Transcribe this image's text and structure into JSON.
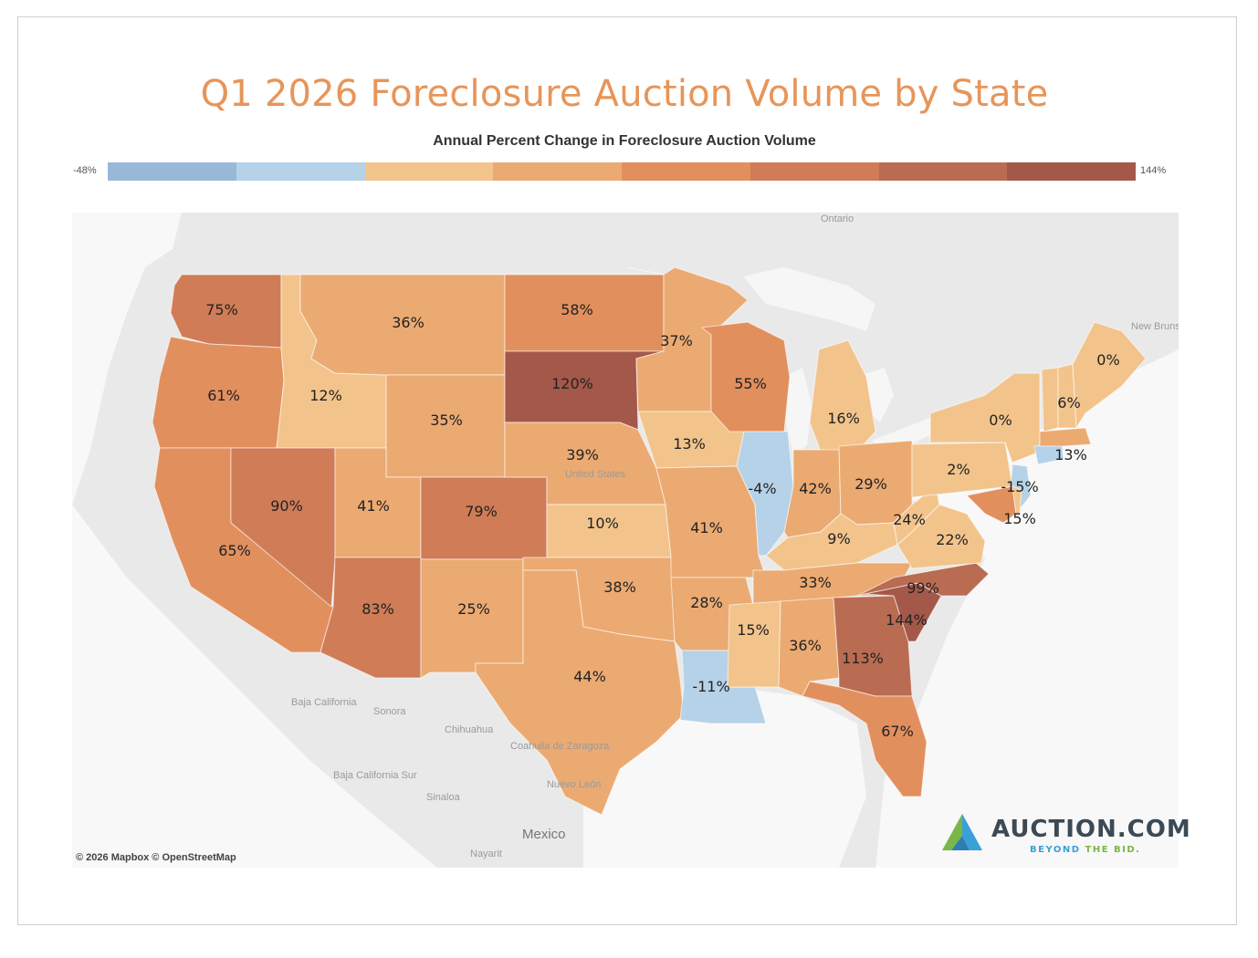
{
  "title": "Q1 2026 Foreclosure Auction Volume by State",
  "legend": {
    "title": "Annual Percent Change in Foreclosure Auction Volume",
    "min_label": "-48%",
    "max_label": "144%",
    "colors": [
      "#98b8d8",
      "#b6d2e8",
      "#f2c48c",
      "#ebaa72",
      "#e28f5e",
      "#cf7c57",
      "#b96c52",
      "#a3584a"
    ]
  },
  "geo_labels": {
    "ontario": "Ontario",
    "new_brunswick": "New Brunswick",
    "united_states": "United States",
    "baja_california": "Baja California",
    "sonora": "Sonora",
    "chihuahua": "Chihuahua",
    "coahuila": "Coahuila de Zaragoza",
    "baja_california_sur": "Baja California Sur",
    "nuevo_leon": "Nuevo León",
    "sinaloa": "Sinaloa",
    "mexico": "Mexico",
    "nayarit": "Nayarit"
  },
  "states": [
    {
      "id": "WA",
      "label": "75%",
      "value": 75,
      "color": "#cf7c57"
    },
    {
      "id": "OR",
      "label": "61%",
      "value": 61,
      "color": "#e28f5e"
    },
    {
      "id": "CA",
      "label": "65%",
      "value": 65,
      "color": "#e28f5e"
    },
    {
      "id": "ID",
      "label": "12%",
      "value": 12,
      "color": "#f2c48c"
    },
    {
      "id": "NV",
      "label": "90%",
      "value": 90,
      "color": "#cf7c57"
    },
    {
      "id": "MT",
      "label": "36%",
      "value": 36,
      "color": "#ebaa72"
    },
    {
      "id": "WY",
      "label": "35%",
      "value": 35,
      "color": "#ebaa72"
    },
    {
      "id": "UT",
      "label": "41%",
      "value": 41,
      "color": "#ebaa72"
    },
    {
      "id": "AZ",
      "label": "83%",
      "value": 83,
      "color": "#cf7c57"
    },
    {
      "id": "CO",
      "label": "79%",
      "value": 79,
      "color": "#cf7c57"
    },
    {
      "id": "NM",
      "label": "25%",
      "value": 25,
      "color": "#ebaa72"
    },
    {
      "id": "ND",
      "label": "58%",
      "value": 58,
      "color": "#e28f5e"
    },
    {
      "id": "SD",
      "label": "120%",
      "value": 120,
      "color": "#a3584a"
    },
    {
      "id": "NE",
      "label": "39%",
      "value": 39,
      "color": "#ebaa72"
    },
    {
      "id": "KS",
      "label": "10%",
      "value": 10,
      "color": "#f2c48c"
    },
    {
      "id": "OK",
      "label": "38%",
      "value": 38,
      "color": "#ebaa72"
    },
    {
      "id": "TX",
      "label": "44%",
      "value": 44,
      "color": "#ebaa72"
    },
    {
      "id": "MN",
      "label": "37%",
      "value": 37,
      "color": "#ebaa72"
    },
    {
      "id": "IA",
      "label": "13%",
      "value": 13,
      "color": "#f2c48c"
    },
    {
      "id": "MO",
      "label": "41%",
      "value": 41,
      "color": "#ebaa72"
    },
    {
      "id": "AR",
      "label": "28%",
      "value": 28,
      "color": "#ebaa72"
    },
    {
      "id": "LA",
      "label": "-11%",
      "value": -11,
      "color": "#b6d2e8"
    },
    {
      "id": "WI",
      "label": "55%",
      "value": 55,
      "color": "#e28f5e"
    },
    {
      "id": "IL",
      "label": "-4%",
      "value": -4,
      "color": "#b6d2e8"
    },
    {
      "id": "MI",
      "label": "16%",
      "value": 16,
      "color": "#f2c48c"
    },
    {
      "id": "IN",
      "label": "42%",
      "value": 42,
      "color": "#ebaa72"
    },
    {
      "id": "OH",
      "label": "29%",
      "value": 29,
      "color": "#ebaa72"
    },
    {
      "id": "KY",
      "label": "9%",
      "value": 9,
      "color": "#f2c48c"
    },
    {
      "id": "TN",
      "label": "33%",
      "value": 33,
      "color": "#ebaa72"
    },
    {
      "id": "MS",
      "label": "15%",
      "value": 15,
      "color": "#f2c48c"
    },
    {
      "id": "AL",
      "label": "36%",
      "value": 36,
      "color": "#ebaa72"
    },
    {
      "id": "GA",
      "label": "113%",
      "value": 113,
      "color": "#b96c52"
    },
    {
      "id": "FL",
      "label": "67%",
      "value": 67,
      "color": "#e28f5e"
    },
    {
      "id": "SC",
      "label": "144%",
      "value": 144,
      "color": "#a3584a"
    },
    {
      "id": "NC",
      "label": "99%",
      "value": 99,
      "color": "#b96c52"
    },
    {
      "id": "VA",
      "label": "22%",
      "value": 22,
      "color": "#f2c48c"
    },
    {
      "id": "WV",
      "label": "24%",
      "value": 24,
      "color": "#f2c48c"
    },
    {
      "id": "PA",
      "label": "2%",
      "value": 2,
      "color": "#f2c48c"
    },
    {
      "id": "NY",
      "label": "0%",
      "value": 0,
      "color": "#f2c48c"
    },
    {
      "id": "NJ",
      "label": "-15%",
      "value": -15,
      "color": "#b6d2e8"
    },
    {
      "id": "MD",
      "label": "15%",
      "value": 15,
      "color": "#e28f5e"
    },
    {
      "id": "DE",
      "label": "",
      "value": null,
      "color": "#f2c48c"
    },
    {
      "id": "CT",
      "label": "13%",
      "value": 13,
      "color": "#b6d2e8"
    },
    {
      "id": "MA",
      "label": "",
      "value": null,
      "color": "#ebaa72"
    },
    {
      "id": "VT",
      "label": "6%",
      "value": 6,
      "color": "#f2c48c"
    },
    {
      "id": "NH",
      "label": "",
      "value": null,
      "color": "#f2c48c"
    },
    {
      "id": "ME",
      "label": "0%",
      "value": 0,
      "color": "#f2c48c"
    }
  ],
  "credit": "© 2026 Mapbox  © OpenStreetMap",
  "logo": {
    "name": "AUCTION.COM",
    "tagline_part1": "BEYOND",
    "tagline_part2": "THE BID."
  }
}
